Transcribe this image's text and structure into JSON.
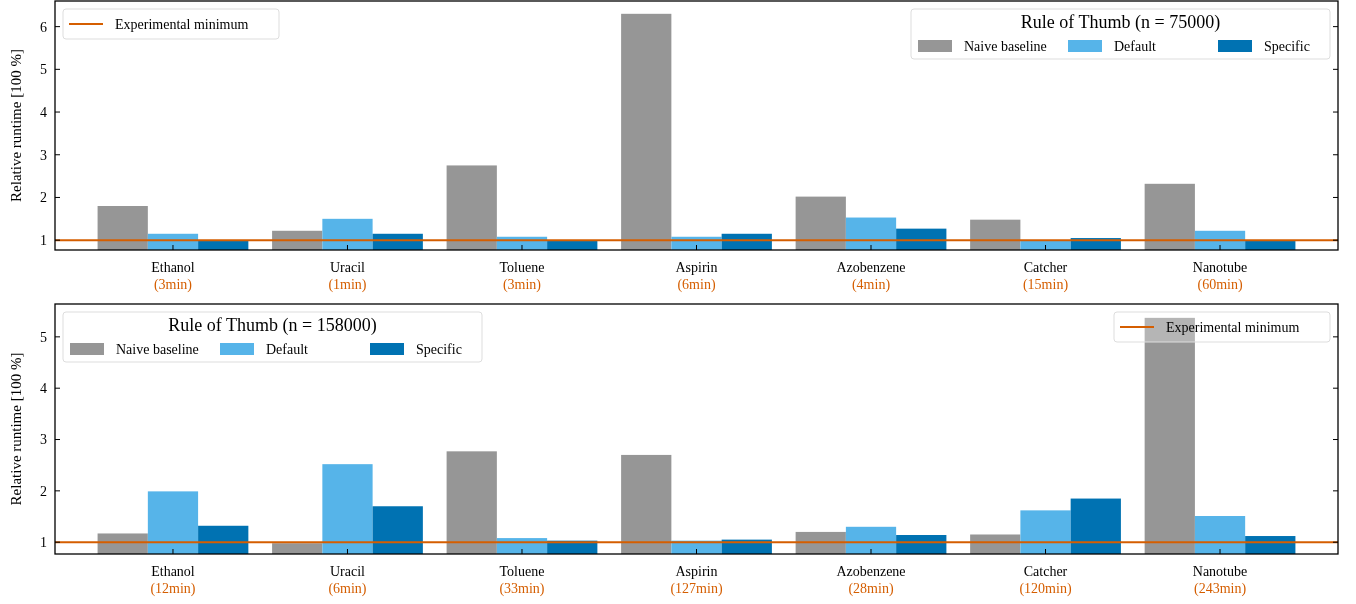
{
  "chart_data": [
    {
      "type": "bar",
      "categories": [
        "Ethanol\n(3min)",
        "Uracil\n(1min)",
        "Toluene\n(3min)",
        "Aspirin\n(6min)",
        "Azobenzene\n(4min)",
        "Catcher\n(15min)",
        "Nanotube\n(60min)"
      ],
      "ylabel": "Relative runtime [100 %]",
      "legend_title": "Rule of Thumb (n = 75000)",
      "legend": "top right",
      "ylim": [
        0.77,
        6.6
      ],
      "yticks": [
        1,
        2,
        3,
        4,
        5,
        6
      ],
      "series": [
        {
          "name": "Naive baseline",
          "color": "#969696",
          "values": [
            1.8,
            1.22,
            2.75,
            6.3,
            2.02,
            1.48,
            2.32
          ]
        },
        {
          "name": "Default",
          "color": "#56b4e9",
          "values": [
            1.15,
            1.5,
            1.08,
            1.08,
            1.53,
            0.98,
            1.22
          ]
        },
        {
          "name": "Specific",
          "color": "#0072b2",
          "values": [
            0.98,
            1.15,
            0.98,
            1.15,
            1.27,
            1.05,
            0.98
          ]
        }
      ],
      "ref_lines": [
        {
          "axis": "y",
          "value": 1,
          "label": "Experimental minimum",
          "color": "#d55e00"
        }
      ]
    },
    {
      "type": "bar",
      "categories": [
        "Ethanol\n(12min)",
        "Uracil\n(6min)",
        "Toluene\n(33min)",
        "Aspirin\n(127min)",
        "Azobenzene\n(28min)",
        "Catcher\n(120min)",
        "Nanotube\n(243min)"
      ],
      "ylabel": "Relative runtime [100 %]",
      "legend_title": "Rule of Thumb (n = 158000)",
      "legend": "top left",
      "ylim": [
        0.77,
        5.64
      ],
      "yticks": [
        1,
        2,
        3,
        4,
        5
      ],
      "series": [
        {
          "name": "Naive baseline",
          "color": "#969696",
          "values": [
            1.17,
            0.98,
            2.77,
            2.7,
            1.2,
            1.15,
            5.37
          ]
        },
        {
          "name": "Default",
          "color": "#56b4e9",
          "values": [
            1.99,
            2.52,
            1.08,
            1.03,
            1.3,
            1.62,
            1.51
          ]
        },
        {
          "name": "Specific",
          "color": "#0072b2",
          "values": [
            1.32,
            1.7,
            1.03,
            1.05,
            1.14,
            1.85,
            1.12
          ]
        }
      ],
      "ref_lines": [
        {
          "axis": "y",
          "value": 1,
          "label": "Experimental minimum",
          "color": "#d55e00"
        }
      ]
    }
  ]
}
